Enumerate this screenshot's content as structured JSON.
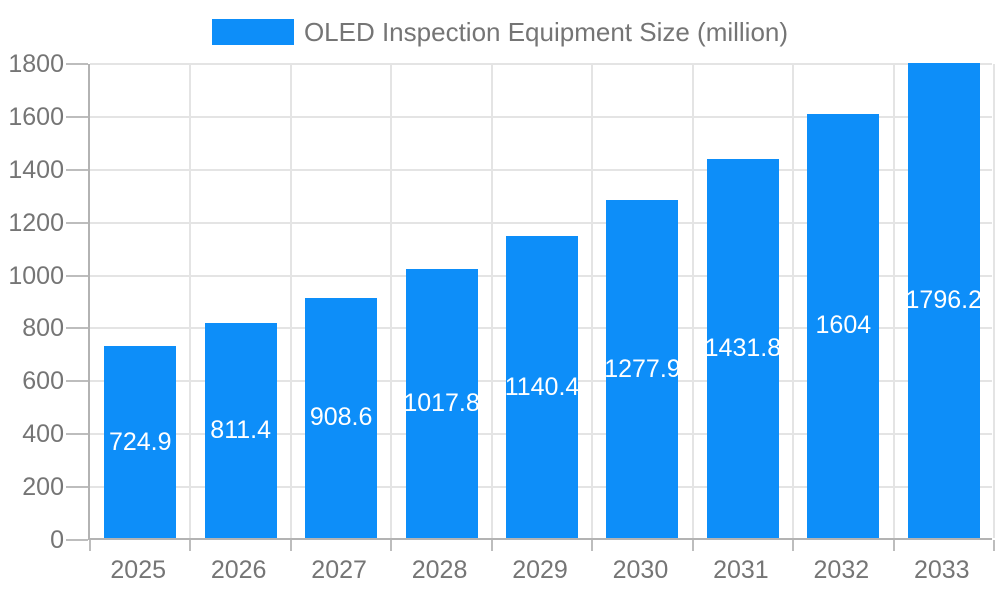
{
  "chart_data": {
    "type": "bar",
    "title": "OLED Inspection Equipment Size (million)",
    "categories": [
      "2025",
      "2026",
      "2027",
      "2028",
      "2029",
      "2030",
      "2031",
      "2032",
      "2033"
    ],
    "values": [
      724.9,
      811.4,
      908.6,
      1017.8,
      1140.4,
      1277.9,
      1431.8,
      1604,
      1796.2
    ],
    "value_labels": [
      "724.9",
      "811.4",
      "908.6",
      "1017.8",
      "1140.4",
      "1277.9",
      "1431.8",
      "1604",
      "1796.2"
    ],
    "ylim": [
      0,
      1800
    ],
    "ytick_step": 200,
    "ytick_labels": [
      "0",
      "200",
      "400",
      "600",
      "800",
      "1000",
      "1200",
      "1400",
      "1600",
      "1800"
    ],
    "grid": true,
    "legend_position": "top-center",
    "colors": {
      "bar": "#0d8ef9",
      "value_label": "#ffffff",
      "axis_text": "#757575",
      "axis_line": "#b3b3b3",
      "tick": "#bdbdbd",
      "grid": "#e4e4e4",
      "background": "#ffffff"
    }
  }
}
